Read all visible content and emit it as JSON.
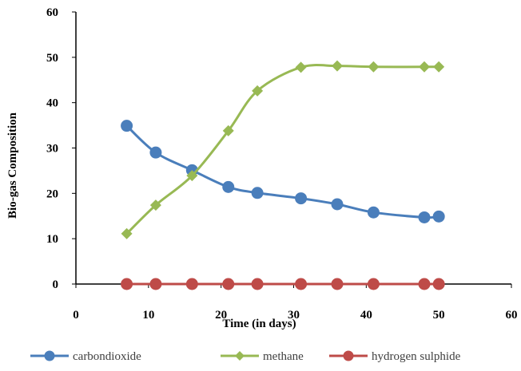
{
  "chart_data": {
    "type": "line",
    "title": "",
    "xlabel": "Time (in days)",
    "ylabel": "Bio-gas Composition",
    "xlim": [
      0,
      60
    ],
    "ylim": [
      0,
      60
    ],
    "x_ticks": [
      0,
      10,
      20,
      30,
      40,
      50,
      60
    ],
    "y_ticks": [
      0,
      10,
      20,
      30,
      40,
      50,
      60
    ],
    "grid": false,
    "legend_position": "bottom",
    "series": [
      {
        "name": "carbondioxide",
        "color": "#4a7ebb",
        "marker": "circle",
        "x": [
          7,
          11,
          16,
          21,
          25,
          31,
          36,
          41,
          48,
          50
        ],
        "y": [
          34.9,
          29,
          25.1,
          21.4,
          20.1,
          18.9,
          17.6,
          15.8,
          14.7,
          14.9
        ]
      },
      {
        "name": "methane",
        "color": "#98b954",
        "marker": "diamond",
        "x": [
          7,
          11,
          16,
          21,
          25,
          31,
          36,
          41,
          48,
          50
        ],
        "y": [
          11.1,
          17.4,
          23.9,
          33.8,
          42.6,
          47.8,
          48.1,
          47.9,
          47.9,
          47.9
        ]
      },
      {
        "name": "hydrogen sulphide",
        "color": "#be4b48",
        "marker": "circle",
        "x": [
          7,
          11,
          16,
          21,
          25,
          31,
          36,
          41,
          48,
          50
        ],
        "y": [
          0,
          0,
          0,
          0,
          0,
          0,
          0,
          0,
          0,
          0
        ]
      }
    ]
  }
}
